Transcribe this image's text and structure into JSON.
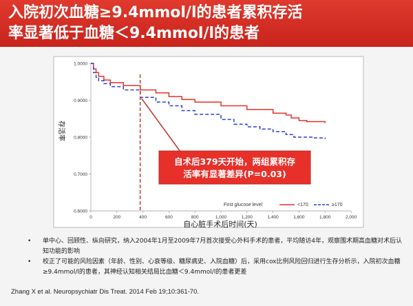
{
  "title": {
    "line1": "入院初次血糖≥9.4mmol/l的患者累积存活",
    "line2": "率显著低于血糖＜9.4mmol/l的患者"
  },
  "chart_data": {
    "type": "line",
    "title": "",
    "xlabel": "自心脏手术后时间(天)",
    "ylabel": "存活率",
    "xlim": [
      0,
      2000
    ],
    "ylim": [
      0.6,
      1.0
    ],
    "x_ticks": [
      "0",
      "200",
      "400",
      "600",
      "800",
      "1,000",
      "1,200",
      "1,400",
      "1,600",
      "1,800",
      "2,000"
    ],
    "y_ticks": [
      "0.6000",
      "0.7000",
      "0.8000",
      "0.9000",
      "1.0000"
    ],
    "legend_title": "First glucose level",
    "legend_position": "bottom-right",
    "series": [
      {
        "name": "<170",
        "color": "#e8302a",
        "dash": false,
        "points": [
          [
            0,
            1.0
          ],
          [
            20,
            0.985
          ],
          [
            40,
            0.975
          ],
          [
            60,
            0.965
          ],
          [
            100,
            0.955
          ],
          [
            150,
            0.948
          ],
          [
            250,
            0.94
          ],
          [
            380,
            0.928
          ],
          [
            500,
            0.92
          ],
          [
            600,
            0.91
          ],
          [
            700,
            0.902
          ],
          [
            800,
            0.895
          ],
          [
            1000,
            0.885
          ],
          [
            1200,
            0.875
          ],
          [
            1400,
            0.865
          ],
          [
            1500,
            0.86
          ],
          [
            1540,
            0.852
          ],
          [
            1600,
            0.845
          ],
          [
            1660,
            0.842
          ],
          [
            1800,
            0.838
          ]
        ]
      },
      {
        "name": "≥170",
        "color": "#2a3fd6",
        "dash": true,
        "points": [
          [
            0,
            1.0
          ],
          [
            20,
            0.975
          ],
          [
            40,
            0.962
          ],
          [
            60,
            0.953
          ],
          [
            100,
            0.945
          ],
          [
            150,
            0.937
          ],
          [
            250,
            0.928
          ],
          [
            380,
            0.908
          ],
          [
            500,
            0.895
          ],
          [
            600,
            0.885
          ],
          [
            700,
            0.872
          ],
          [
            800,
            0.862
          ],
          [
            1000,
            0.848
          ],
          [
            1100,
            0.835
          ],
          [
            1200,
            0.828
          ],
          [
            1300,
            0.822
          ],
          [
            1400,
            0.815
          ],
          [
            1500,
            0.807
          ],
          [
            1560,
            0.8
          ],
          [
            1700,
            0.798
          ],
          [
            1800,
            0.795
          ]
        ]
      }
    ],
    "vline": {
      "x": 379
    },
    "annotation": {
      "text1": "自术后379天开始，两组累积存",
      "text2": "活率有显著差异(P=0.03)",
      "bg": "#e8302a"
    }
  },
  "bullets": [
    "单中心、回顾性、纵向研究，纳入2004年1月至2009年7月首次接受心外科手术的患者，平均随访4年，观察围术期高血糖对术后认知功能的影响",
    "校正了可能的风险因素（年龄、性别、心衰等级、糖尿病史、入院血糖）后，采用cox比例风险回归进行生存分析示，入院初次血糖≥9.4mmol/l的患者，其神经认知相关结局比血糖＜9.4mmol/l的患者更差"
  ],
  "citation": "Zhang X et al. Neuropsychiatr Dis Treat. 2014 Feb 19;10:361-70."
}
